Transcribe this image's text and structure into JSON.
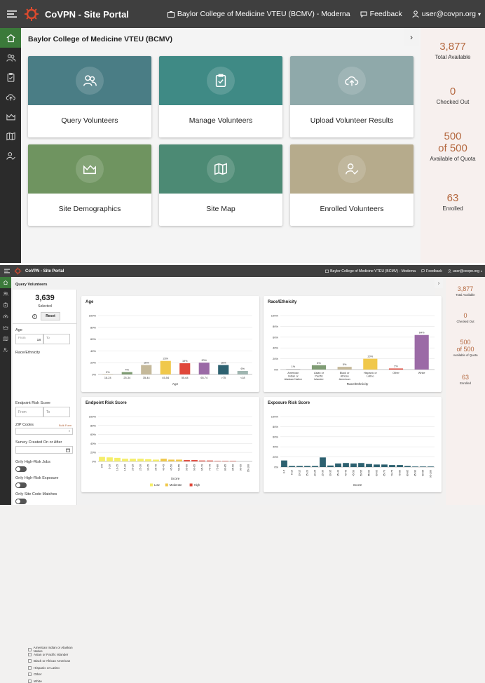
{
  "app": {
    "title": "CoVPN - Site Portal"
  },
  "header": {
    "site": "Baylor College of Medicine VTEU (BCMV) - Moderna",
    "feedback": "Feedback",
    "user": "user@covpn.org"
  },
  "colors": {
    "topbar": "#3f3f3f",
    "sidebar": "#2b2b2b",
    "active": "#3b7a3a",
    "accent": "#b4683f"
  },
  "sidebar_icons": [
    "home-icon",
    "volunteers-icon",
    "clipboard-icon",
    "cloud-upload-icon",
    "chart-icon",
    "map-icon",
    "user-check-icon"
  ],
  "top": {
    "panel_title": "Baylor College of Medicine VTEU (BCMV)",
    "tiles": [
      {
        "label": "Query Volunteers",
        "icon": "volunteers-icon",
        "color": "#4a7d85"
      },
      {
        "label": "Manage Volunteers",
        "icon": "clipboard-icon",
        "color": "#3f8a85"
      },
      {
        "label": "Upload Volunteer Results",
        "icon": "cloud-upload-icon",
        "color": "#8fa9aa"
      },
      {
        "label": "Site Demographics",
        "icon": "chart-icon",
        "color": "#6f9460"
      },
      {
        "label": "Site Map",
        "icon": "map-icon",
        "color": "#4c8a74"
      },
      {
        "label": "Enrolled Volunteers",
        "icon": "user-check-icon",
        "color": "#b6ab8c"
      }
    ],
    "stats": [
      {
        "value": "3,877",
        "caption": "Total Available"
      },
      {
        "value": "0",
        "caption": "Checked Out"
      },
      {
        "value": "500",
        "value2": "of 500",
        "caption": "Available of Quota"
      },
      {
        "value": "63",
        "caption": "Enrolled"
      }
    ]
  },
  "bottom": {
    "panel_title": "Query Volunteers",
    "selected_count": "3,639",
    "selected_label": "Selected",
    "help": "?",
    "reset": "Reset",
    "filters": {
      "age_label": "Age",
      "age_from_ph": "From",
      "age_from_val": "18",
      "age_to_ph": "To",
      "race_label": "Race/Ethnicity",
      "race_options": [
        "American Indian or Alaskan Native",
        "Asian or Pacific Islander",
        "Black or African American",
        "Hispanic or Latino",
        "Other",
        "White"
      ],
      "endpoint_label": "Endpoint Risk Score",
      "endpoint_from": "From",
      "endpoint_to": "To",
      "zip_label": "ZIP Codes",
      "bulk_form": "Bulk Form",
      "survey_label": "Survey Created On or After",
      "high_jobs": "Only High-Risk Jobs",
      "high_exposure": "Only High-Risk Exposure",
      "site_code": "Only Site Code Matches"
    }
  },
  "chart_data": [
    {
      "type": "bar",
      "title": "Age",
      "xlabel": "Age",
      "categories": [
        "18-24",
        "25-34",
        "35-44",
        "45-54",
        "55-64",
        "65-74",
        ">75",
        "<18"
      ],
      "values": [
        0,
        4,
        16,
        23,
        19,
        20,
        16,
        6
      ],
      "value_labels": [
        "0%",
        "4%",
        "16%",
        "23%",
        "19%",
        "20%",
        "16%",
        "6%"
      ],
      "colors": [
        "#c5b99a",
        "#7f9c74",
        "#c5b99a",
        "#f0c84b",
        "#e0473a",
        "#9b6aa6",
        "#2d6170",
        "#9fb5b0"
      ],
      "yticks": [
        "0%",
        "20%",
        "40%",
        "60%",
        "80%",
        "100%"
      ],
      "ylim": [
        0,
        100
      ]
    },
    {
      "type": "bar",
      "title": "Race/Ethnicity",
      "xlabel": "Race/Ethnicity",
      "categories": [
        "American Indian or Alaskan Native",
        "Asian or Pacific Islander",
        "Black or African American",
        "Hispanic or Latino",
        "Other",
        "White"
      ],
      "values": [
        1,
        8,
        5,
        20,
        2,
        64
      ],
      "value_labels": [
        "1%",
        "8%",
        "5%",
        "20%",
        "2%",
        "64%"
      ],
      "colors": [
        "#aaaaaa",
        "#7f9c74",
        "#c5b99a",
        "#f0c84b",
        "#e0473a",
        "#9b6aa6"
      ],
      "yticks": [
        "0%",
        "20%",
        "40%",
        "60%",
        "80%",
        "100%"
      ],
      "ylim": [
        0,
        100
      ]
    },
    {
      "type": "bar",
      "title": "Endpoint Risk Score",
      "xlabel": "Score",
      "categories": [
        "0-5",
        "5-10",
        "10-15",
        "15-20",
        "20-25",
        "25-30",
        "30-35",
        "35-40",
        "40-45",
        "45-50",
        "50-55",
        "55-60",
        "60-65",
        "65-70",
        "70-75",
        "75-80",
        "80-85",
        "85-90",
        "90-95",
        "95-100"
      ],
      "series": [
        {
          "name": "Low",
          "color": "#f5ee6a",
          "values": [
            10,
            9,
            8,
            6,
            6,
            6,
            5,
            4,
            0,
            0,
            0,
            0,
            0,
            0,
            0,
            0,
            0,
            0,
            0,
            0
          ]
        },
        {
          "name": "Moderate",
          "color": "#f0c84b",
          "values": [
            0,
            0,
            0,
            0,
            0,
            0,
            0,
            0,
            6,
            4,
            4,
            0,
            0,
            0,
            0,
            0,
            0,
            0,
            0,
            0
          ]
        },
        {
          "name": "High",
          "color": "#e0473a",
          "values": [
            0,
            0,
            0,
            0,
            0,
            0,
            0,
            0,
            0,
            0,
            0,
            3,
            3,
            2,
            2,
            1,
            1,
            1,
            0,
            0
          ]
        }
      ],
      "yticks": [
        "0%",
        "20%",
        "40%",
        "60%",
        "80%",
        "100%"
      ],
      "ylim": [
        0,
        100
      ]
    },
    {
      "type": "bar",
      "title": "Exposure Risk Score",
      "xlabel": "Score",
      "categories": [
        "0-5",
        "5-10",
        "10-15",
        "15-20",
        "20-25",
        "25-30",
        "30-35",
        "35-40",
        "40-45",
        "45-50",
        "50-55",
        "55-60",
        "60-65",
        "65-70",
        "70-75",
        "75-80",
        "80-85",
        "85-90",
        "90-95",
        "95-100"
      ],
      "values": [
        13,
        2,
        2,
        2,
        2,
        19,
        3,
        7,
        8,
        7,
        8,
        6,
        5,
        5,
        4,
        4,
        2,
        1,
        1,
        1
      ],
      "colors": [
        "#2d6170"
      ],
      "yticks": [
        "0%",
        "20%",
        "40%",
        "60%",
        "80%",
        "100%"
      ],
      "ylim": [
        0,
        100
      ]
    }
  ]
}
